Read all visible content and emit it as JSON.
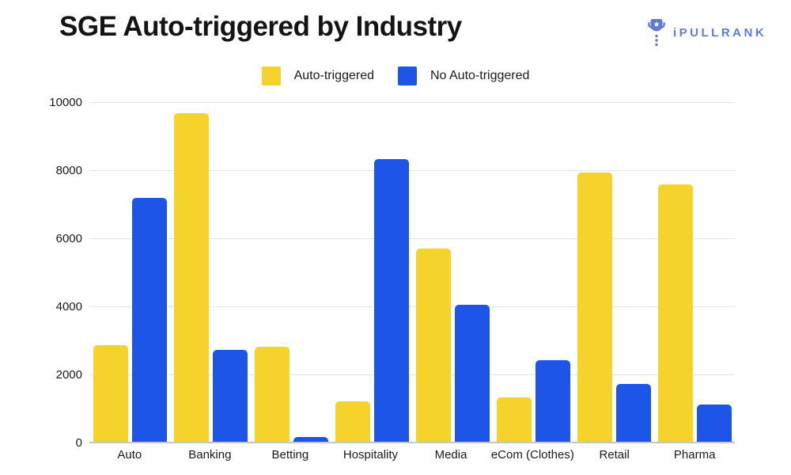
{
  "header": {
    "title": "SGE Auto-triggered by Industry",
    "logo_text": "iPULLRANK"
  },
  "colors": {
    "auto_triggered": "#f6d32b",
    "no_auto_triggered": "#1d55e8",
    "logo_blue": "#5e7bd8",
    "grid": "#e4e4e4",
    "axis_baseline": "#c6c6c6",
    "text": "#1a1a1a"
  },
  "legend": {
    "position": "top-center",
    "items": [
      {
        "label": "Auto-triggered",
        "color": "#f6d32b"
      },
      {
        "label": "No Auto-triggered",
        "color": "#1d55e8"
      }
    ]
  },
  "chart_data": {
    "type": "bar",
    "title": "SGE Auto-triggered by Industry",
    "xlabel": "",
    "ylabel": "",
    "categories": [
      "Auto",
      "Banking",
      "Betting",
      "Hospitality",
      "Media",
      "eCom (Clothes)",
      "Retail",
      "Pharma"
    ],
    "series": [
      {
        "name": "Auto-triggered",
        "color": "#f6d32b",
        "values": [
          2850,
          9700,
          2800,
          1200,
          5700,
          1300,
          7950,
          7600
        ]
      },
      {
        "name": "No Auto-triggered",
        "color": "#1d55e8",
        "values": [
          7200,
          2700,
          150,
          8350,
          4050,
          2400,
          1700,
          1100
        ]
      }
    ],
    "ylim": [
      0,
      10000
    ],
    "yticks": [
      0,
      2000,
      4000,
      6000,
      8000,
      10000
    ],
    "grid": true,
    "legend_position": "top"
  }
}
